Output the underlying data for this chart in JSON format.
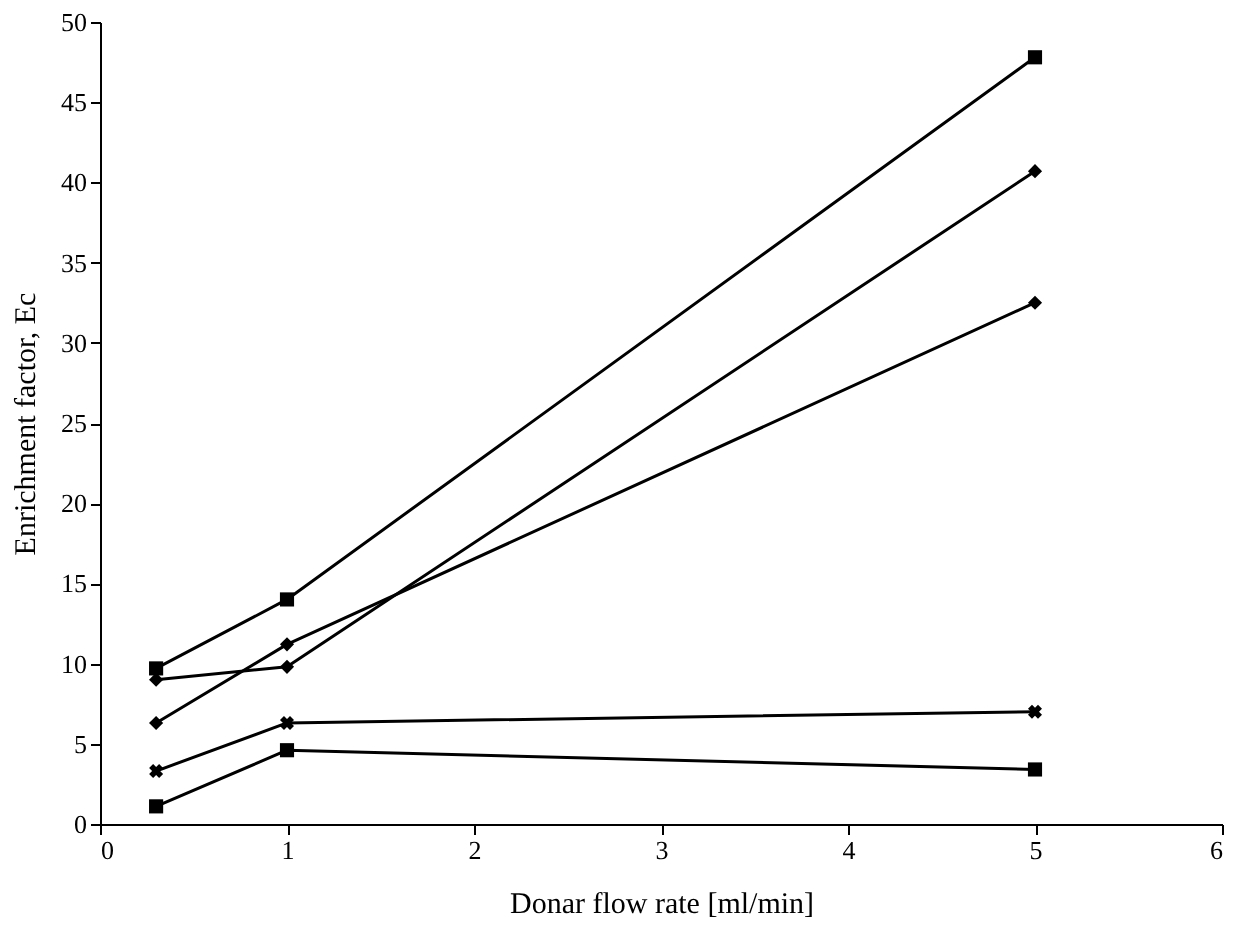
{
  "chart_data": {
    "type": "line",
    "xlabel": "Donar flow rate [ml/min]",
    "ylabel": "Enrichment factor, Ec",
    "x": [
      0.3,
      1,
      5
    ],
    "series": [
      {
        "color": "#000000",
        "values": [
          9.7,
          14,
          47.8
        ],
        "marker": "square"
      },
      {
        "color": "#000000",
        "values": [
          9,
          9.8,
          40.7
        ],
        "marker": "diamond"
      },
      {
        "color": "#000000",
        "values": [
          6.3,
          11.2,
          32.5
        ],
        "marker": "diamond"
      },
      {
        "color": "#000000",
        "values": [
          3.3,
          6.3,
          7
        ],
        "marker": "cross"
      },
      {
        "color": "#000000",
        "values": [
          1.1,
          4.6,
          3.4
        ],
        "marker": "square"
      }
    ],
    "xlim": [
      0,
      6
    ],
    "xticks": [
      0,
      1,
      2,
      3,
      4,
      5,
      6
    ],
    "ylim": [
      0,
      50
    ],
    "yticks": [
      0,
      5,
      10,
      15,
      20,
      25,
      30,
      35,
      40,
      45,
      50
    ],
    "grid": false,
    "line_style": "solid"
  }
}
